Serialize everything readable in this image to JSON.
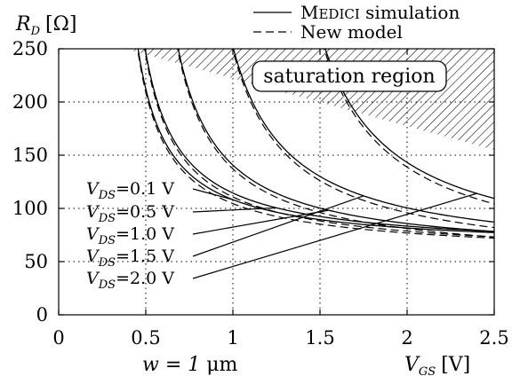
{
  "chart_data": {
    "type": "line",
    "x_axis": {
      "label": "V",
      "label_sub": "GS",
      "unit": "[V]",
      "range": [
        0,
        2.5
      ],
      "ticks": [
        "0",
        "0.5",
        "1",
        "1.5",
        "2",
        "2.5"
      ]
    },
    "y_axis": {
      "label": "R",
      "label_sub": "D",
      "unit": "[Ω]",
      "range": [
        0,
        250
      ],
      "ticks": [
        "0",
        "50",
        "100",
        "150",
        "200",
        "250"
      ]
    },
    "grid": "dotted",
    "legend": {
      "placement": "top-right",
      "entries": [
        {
          "style": "solid",
          "label_sc_first": "M",
          "label_sc_rest": "EDICI",
          "label_tail": " simulation"
        },
        {
          "style": "dashed",
          "label": "New model"
        }
      ]
    },
    "region_label": "saturation region",
    "width_annotation": {
      "prefix": "w = 1 ",
      "unit": "μm"
    },
    "vds_labels": [
      {
        "sym": "V",
        "sub": "DS",
        "value": "=0.1 V"
      },
      {
        "sym": "V",
        "sub": "DS",
        "value": "=0.5 V"
      },
      {
        "sym": "V",
        "sub": "DS",
        "value": "=1.0 V"
      },
      {
        "sym": "V",
        "sub": "DS",
        "value": "=1.5 V"
      },
      {
        "sym": "V",
        "sub": "DS",
        "value": "=2.0 V"
      }
    ],
    "series": [
      {
        "name": "V_DS=0.1 V",
        "vds": 0.1,
        "x0": 0.28,
        "a": 33,
        "b": 62.4,
        "xmax": 2.5
      },
      {
        "name": "V_DS=0.5 V",
        "vds": 0.5,
        "x0": 0.3,
        "a": 37,
        "b": 61.6,
        "xmax": 2.5
      },
      {
        "name": "V_DS=1.0 V",
        "vds": 1.0,
        "x0": 0.44,
        "a": 48,
        "b": 55,
        "xmax": 2.5
      },
      {
        "name": "V_DS=1.5 V",
        "vds": 1.5,
        "x0": 0.68,
        "a": 64,
        "b": 52,
        "xmax": 2.5
      },
      {
        "name": "V_DS=2.0 V",
        "vds": 2.0,
        "x0": 1.12,
        "a": 82,
        "b": 50,
        "xmax": 2.5
      }
    ],
    "saturation_boundary": {
      "x": [
        0.38,
        2.5
      ],
      "y": [
        250,
        155
      ]
    },
    "colors": {
      "line": "#000000",
      "hatch": "#000000",
      "grid": "#000000",
      "background": "#ffffff"
    }
  }
}
